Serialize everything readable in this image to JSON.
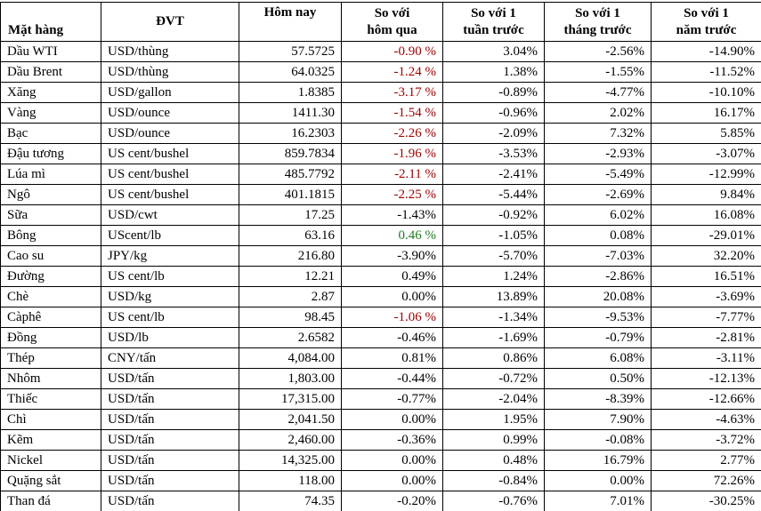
{
  "colors": {
    "negative_change": "#a40000",
    "positive_change": "#1f7a1f",
    "border": "#000000",
    "text": "#000000",
    "background": "#ffffff"
  },
  "table": {
    "headers": [
      "Mặt hàng",
      "ĐVT",
      "Hôm nay",
      "So với\nhôm qua",
      "So với 1\ntuần trước",
      "So với 1\ntháng trước",
      "So với 1\nnăm trước"
    ],
    "rows": [
      {
        "name": "Dầu WTI",
        "unit": "USD/thùng",
        "today": "57.5725",
        "vs_yesterday": "-0.90 %",
        "change": "negative",
        "vs_week": "3.04%",
        "vs_month": "-2.56%",
        "vs_year": "-14.90%"
      },
      {
        "name": "Dầu Brent",
        "unit": "USD/thùng",
        "today": "64.0325",
        "vs_yesterday": "-1.24 %",
        "change": "negative",
        "vs_week": "1.38%",
        "vs_month": "-1.55%",
        "vs_year": "-11.52%"
      },
      {
        "name": "Xăng",
        "unit": "USD/gallon",
        "today": "1.8385",
        "vs_yesterday": "-3.17 %",
        "change": "negative",
        "vs_week": "-0.89%",
        "vs_month": "-4.77%",
        "vs_year": "-10.10%"
      },
      {
        "name": "Vàng",
        "unit": "USD/ounce",
        "today": "1411.30",
        "vs_yesterday": "-1.54 %",
        "change": "negative",
        "vs_week": "-0.96%",
        "vs_month": "2.02%",
        "vs_year": "16.17%"
      },
      {
        "name": "Bạc",
        "unit": "USD/ounce",
        "today": "16.2303",
        "vs_yesterday": "-2.26 %",
        "change": "negative",
        "vs_week": "-2.09%",
        "vs_month": "7.32%",
        "vs_year": "5.85%"
      },
      {
        "name": "Đậu tương",
        "unit": "US cent/bushel",
        "today": "859.7834",
        "vs_yesterday": "-1.96 %",
        "change": "negative",
        "vs_week": "-3.53%",
        "vs_month": "-2.93%",
        "vs_year": "-3.07%"
      },
      {
        "name": "Lúa mì",
        "unit": "US cent/bushel",
        "today": "485.7792",
        "vs_yesterday": "-2.11 %",
        "change": "negative",
        "vs_week": "-2.41%",
        "vs_month": "-5.49%",
        "vs_year": "-12.99%"
      },
      {
        "name": "Ngô",
        "unit": "US cent/bushel",
        "today": "401.1815",
        "vs_yesterday": "-2.25 %",
        "change": "negative",
        "vs_week": "-5.44%",
        "vs_month": "-2.69%",
        "vs_year": "9.84%"
      },
      {
        "name": "Sữa",
        "unit": "USD/cwt",
        "today": "17.25",
        "vs_yesterday": "-1.43%",
        "vs_week": "-0.92%",
        "vs_month": "6.02%",
        "vs_year": "16.08%"
      },
      {
        "name": "Bông",
        "unit": "UScent/lb",
        "today": "63.16",
        "vs_yesterday": "0.46 %",
        "change": "positive",
        "vs_week": "-1.05%",
        "vs_month": "0.08%",
        "vs_year": "-29.01%"
      },
      {
        "name": "Cao su",
        "unit": "JPY/kg",
        "today": "216.80",
        "vs_yesterday": "-3.90%",
        "vs_week": "-5.70%",
        "vs_month": "-7.03%",
        "vs_year": "32.20%"
      },
      {
        "name": "Đường",
        "unit": "US cent/lb",
        "today": "12.21",
        "vs_yesterday": "0.49%",
        "vs_week": "1.24%",
        "vs_month": "-2.86%",
        "vs_year": "16.51%"
      },
      {
        "name": "Chè",
        "unit": "USD/kg",
        "today": "2.87",
        "vs_yesterday": "0.00%",
        "vs_week": "13.89%",
        "vs_month": "20.08%",
        "vs_year": "-3.69%"
      },
      {
        "name": "Càphê",
        "unit": "US cent/lb",
        "today": "98.45",
        "vs_yesterday": "-1.06 %",
        "change": "negative",
        "vs_week": "-1.34%",
        "vs_month": "-9.53%",
        "vs_year": "-7.77%"
      },
      {
        "name": "Đồng",
        "unit": "USD/lb",
        "today": "2.6582",
        "vs_yesterday": "-0.46%",
        "vs_week": "-1.69%",
        "vs_month": "-0.79%",
        "vs_year": "-2.81%"
      },
      {
        "name": "Thép",
        "unit": "CNY/tấn",
        "today": "4,084.00",
        "vs_yesterday": "0.81%",
        "vs_week": "0.86%",
        "vs_month": "6.08%",
        "vs_year": "-3.11%"
      },
      {
        "name": "Nhôm",
        "unit": "USD/tấn",
        "today": "1,803.00",
        "vs_yesterday": "-0.44%",
        "vs_week": "-0.72%",
        "vs_month": "0.50%",
        "vs_year": "-12.13%"
      },
      {
        "name": "Thiếc",
        "unit": "USD/tấn",
        "today": "17,315.00",
        "vs_yesterday": "-0.77%",
        "vs_week": "-2.04%",
        "vs_month": "-8.39%",
        "vs_year": "-12.66%"
      },
      {
        "name": "Chì",
        "unit": "USD/tấn",
        "today": "2,041.50",
        "vs_yesterday": "0.00%",
        "vs_week": "1.95%",
        "vs_month": "7.90%",
        "vs_year": "-4.63%"
      },
      {
        "name": "Kẽm",
        "unit": "USD/tấn",
        "today": "2,460.00",
        "vs_yesterday": "-0.36%",
        "vs_week": "0.99%",
        "vs_month": "-0.08%",
        "vs_year": "-3.72%"
      },
      {
        "name": "Nickel",
        "unit": "USD/tấn",
        "today": "14,325.00",
        "vs_yesterday": "0.00%",
        "vs_week": "0.48%",
        "vs_month": "16.79%",
        "vs_year": "2.77%"
      },
      {
        "name": "Quặng sắt",
        "unit": "USD/tấn",
        "today": "118.00",
        "vs_yesterday": "0.00%",
        "vs_week": "-0.84%",
        "vs_month": "0.00%",
        "vs_year": "72.26%"
      },
      {
        "name": "Than đá",
        "unit": "USD/tấn",
        "today": "74.35",
        "vs_yesterday": "-0.20%",
        "vs_week": "-0.76%",
        "vs_month": "7.01%",
        "vs_year": "-30.25%"
      }
    ]
  }
}
